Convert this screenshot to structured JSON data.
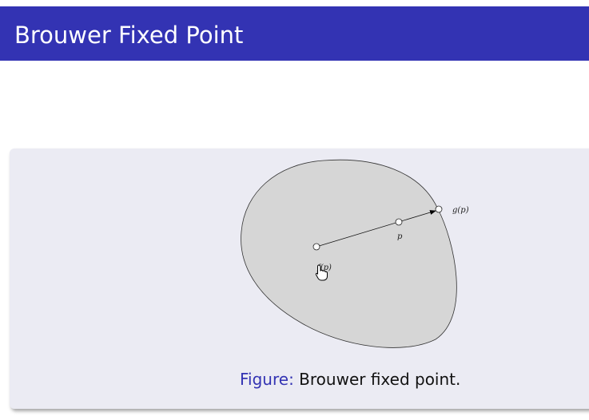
{
  "slide": {
    "title": "Brouwer Fixed Point"
  },
  "figure": {
    "point_labels": {
      "f": "f(p)",
      "p": "p",
      "g": "g(p)"
    },
    "caption_label": "Figure:",
    "caption_text": " Brouwer fixed point."
  },
  "colors": {
    "title_bar": "#3333b3",
    "block_background": "#ebebf3",
    "region_fill": "#d6d6d6",
    "caption_label": "#3333b3"
  }
}
